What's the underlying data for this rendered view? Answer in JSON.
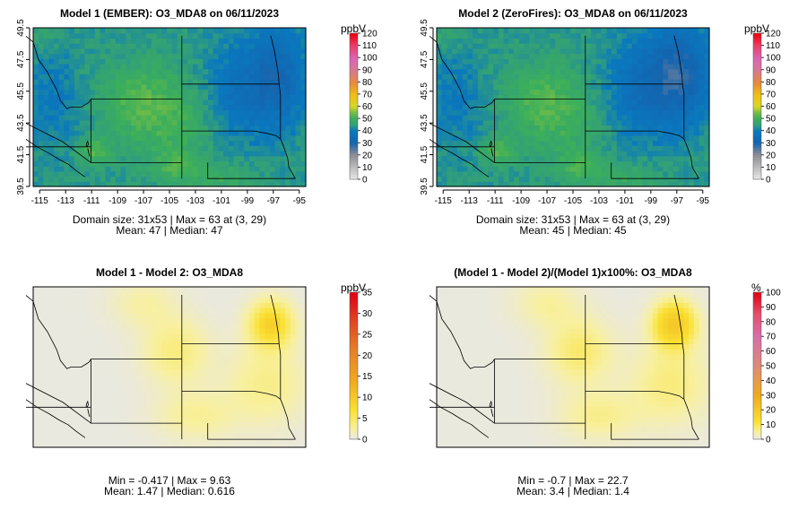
{
  "panels": [
    {
      "id": "m1",
      "title": "Model 1 (EMBER): O3_MDA8 on 06/11/2023",
      "stats_line1": "Domain size: 31x53 | Max = 63 at (3, 29)",
      "stats_line2": "Mean: 47 |  Median: 47",
      "unit": "ppbV",
      "colorbar_ticks": [
        "0",
        "10",
        "20",
        "30",
        "40",
        "50",
        "60",
        "70",
        "80",
        "90",
        "100",
        "110",
        "120"
      ],
      "colorbar_max": 120,
      "x_ticks": [
        "-115",
        "-113",
        "-111",
        "-109",
        "-107",
        "-105",
        "-103",
        "-101",
        "-99",
        "-97",
        "-95"
      ],
      "y_ticks": [
        "39.5",
        "41.5",
        "43.5",
        "45.5",
        "47.5",
        "49.5"
      ],
      "field": "abs_base"
    },
    {
      "id": "m2",
      "title": "Model 2 (ZeroFires): O3_MDA8 on 06/11/2023",
      "stats_line1": "Domain size: 31x53 | Max = 63 at (3, 29)",
      "stats_line2": "Mean: 45 |  Median: 45",
      "unit": "ppbV",
      "colorbar_ticks": [
        "0",
        "10",
        "20",
        "30",
        "40",
        "50",
        "60",
        "70",
        "80",
        "90",
        "100",
        "110",
        "120"
      ],
      "colorbar_max": 120,
      "x_ticks": [
        "-115",
        "-113",
        "-111",
        "-109",
        "-107",
        "-105",
        "-103",
        "-101",
        "-99",
        "-97",
        "-95"
      ],
      "y_ticks": [
        "39.5",
        "41.5",
        "43.5",
        "45.5",
        "47.5",
        "49.5"
      ],
      "field": "abs_zero"
    },
    {
      "id": "diff",
      "title": "Model 1 - Model 2: O3_MDA8",
      "stats_line1": "Min = -0.417 | Max = 9.63",
      "stats_line2": "Mean: 1.47 |  Median: 0.616",
      "unit": "ppbV",
      "colorbar_ticks": [
        "0",
        "5",
        "10",
        "15",
        "20",
        "25",
        "30",
        "35"
      ],
      "colorbar_max": 35,
      "field": "diff"
    },
    {
      "id": "pct",
      "title": "(Model 1 - Model 2)/(Model 1)x100%: O3_MDA8",
      "stats_line1": "Min = -0.7 | Max = 22.7",
      "stats_line2": "Mean: 3.4 |  Median: 1.4",
      "unit": "%",
      "colorbar_ticks": [
        "0",
        "10",
        "20",
        "30",
        "40",
        "50",
        "60",
        "70",
        "80",
        "90",
        "100"
      ],
      "colorbar_max": 100,
      "field": "pct"
    }
  ],
  "chart_data": [
    {
      "type": "heatmap",
      "title": "Model 1 (EMBER): O3_MDA8 on 06/11/2023",
      "x_range": [
        -115.5,
        -94.5
      ],
      "y_range": [
        39.5,
        49.5
      ],
      "grid_size": "31x53",
      "colorbar": {
        "label": "ppbV",
        "range": [
          0,
          120
        ]
      },
      "max": 63,
      "max_at": [
        3,
        29
      ],
      "mean": 47,
      "median": 47
    },
    {
      "type": "heatmap",
      "title": "Model 2 (ZeroFires): O3_MDA8 on 06/11/2023",
      "x_range": [
        -115.5,
        -94.5
      ],
      "y_range": [
        39.5,
        49.5
      ],
      "grid_size": "31x53",
      "colorbar": {
        "label": "ppbV",
        "range": [
          0,
          120
        ]
      },
      "max": 63,
      "max_at": [
        3,
        29
      ],
      "mean": 45,
      "median": 45
    },
    {
      "type": "heatmap",
      "title": "Model 1 - Model 2: O3_MDA8",
      "colorbar": {
        "label": "ppbV",
        "range": [
          0,
          35
        ]
      },
      "min": -0.417,
      "max": 9.63,
      "mean": 1.47,
      "median": 0.616
    },
    {
      "type": "heatmap",
      "title": "(Model 1 - Model 2)/(Model 1)x100%: O3_MDA8",
      "colorbar": {
        "label": "%",
        "range": [
          0,
          100
        ]
      },
      "min": -0.7,
      "max": 22.7,
      "mean": 3.4,
      "median": 1.4
    }
  ]
}
